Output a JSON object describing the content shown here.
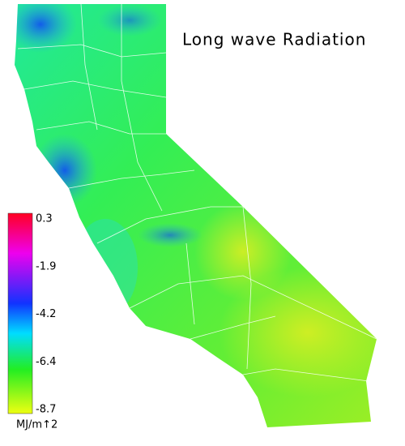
{
  "title": "Long wave Radiation",
  "legend": {
    "labels": [
      "0.3",
      "-1.9",
      "-4.2",
      "-6.4",
      "-8.7"
    ],
    "unit": "MJ/m↑2"
  }
}
